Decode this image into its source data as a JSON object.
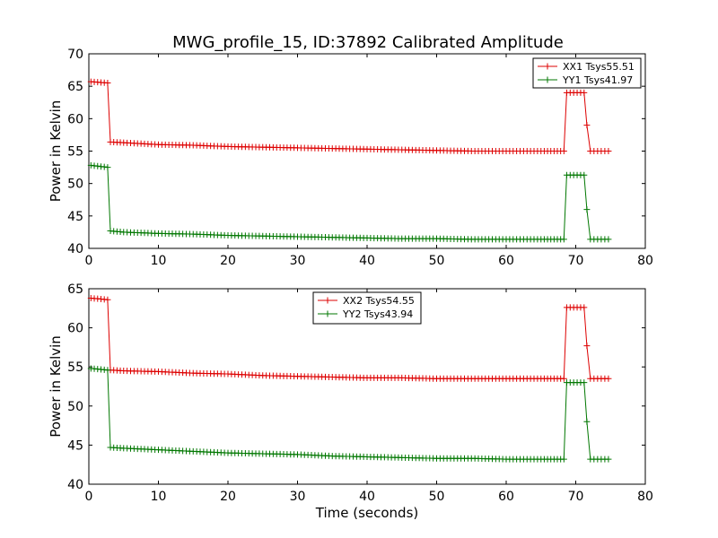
{
  "figure": {
    "title": "MWG_profile_15, ID:37892 Calibrated Amplitude"
  },
  "chart_data": [
    {
      "type": "line",
      "ylabel": "Power in Kelvin",
      "xlabel": "",
      "xlim": [
        0,
        80
      ],
      "ylim": [
        40,
        70
      ],
      "xticks": [
        0,
        10,
        20,
        30,
        40,
        50,
        60,
        70,
        80
      ],
      "yticks": [
        40,
        45,
        50,
        55,
        60,
        65,
        70
      ],
      "legend_position": "top-right",
      "grid": false,
      "series": [
        {
          "name": "XX1 Tsys55.51",
          "color": "#dd0000",
          "x": [
            0.3,
            2.7,
            3.1,
            5,
            10,
            15,
            20,
            25,
            30,
            35,
            40,
            45,
            50,
            55,
            60,
            65,
            68.3,
            68.7,
            71.2,
            71.6,
            72.1,
            74.7
          ],
          "y": [
            65.7,
            65.5,
            56.4,
            56.3,
            56.0,
            55.9,
            55.7,
            55.6,
            55.5,
            55.4,
            55.3,
            55.2,
            55.1,
            55.0,
            55.0,
            55.0,
            55.0,
            64.0,
            64.0,
            59.0,
            55.0,
            55.0
          ]
        },
        {
          "name": "YY1 Tsys41.97",
          "color": "#007700",
          "x": [
            0.3,
            2.7,
            3.1,
            5,
            10,
            15,
            20,
            25,
            30,
            35,
            40,
            45,
            50,
            55,
            60,
            65,
            68.3,
            68.7,
            71.2,
            71.6,
            72.1,
            74.7
          ],
          "y": [
            52.8,
            52.5,
            42.7,
            42.5,
            42.3,
            42.2,
            42.0,
            41.9,
            41.8,
            41.7,
            41.6,
            41.5,
            41.5,
            41.4,
            41.4,
            41.4,
            41.4,
            51.3,
            51.3,
            46.0,
            41.4,
            41.4
          ]
        }
      ]
    },
    {
      "type": "line",
      "ylabel": "Power in Kelvin",
      "xlabel": "Time (seconds)",
      "xlim": [
        0,
        80
      ],
      "ylim": [
        40,
        65
      ],
      "xticks": [
        0,
        10,
        20,
        30,
        40,
        50,
        60,
        70,
        80
      ],
      "yticks": [
        40,
        45,
        50,
        55,
        60,
        65
      ],
      "legend_position": "top-center",
      "grid": false,
      "series": [
        {
          "name": "XX2 Tsys54.55",
          "color": "#dd0000",
          "x": [
            0.3,
            2.7,
            3.1,
            5,
            10,
            15,
            20,
            25,
            30,
            35,
            40,
            45,
            50,
            55,
            60,
            65,
            68.3,
            68.7,
            71.2,
            71.6,
            72.1,
            74.7
          ],
          "y": [
            63.8,
            63.6,
            54.6,
            54.5,
            54.4,
            54.2,
            54.1,
            53.9,
            53.8,
            53.7,
            53.6,
            53.6,
            53.5,
            53.5,
            53.5,
            53.5,
            53.5,
            62.6,
            62.6,
            57.7,
            53.5,
            53.5
          ]
        },
        {
          "name": "YY2 Tsys43.94",
          "color": "#007700",
          "x": [
            0.3,
            2.7,
            3.1,
            5,
            10,
            15,
            20,
            25,
            30,
            35,
            40,
            45,
            50,
            55,
            60,
            65,
            68.3,
            68.7,
            71.2,
            71.6,
            72.1,
            74.7
          ],
          "y": [
            54.8,
            54.6,
            44.7,
            44.6,
            44.4,
            44.2,
            44.0,
            43.9,
            43.8,
            43.6,
            43.5,
            43.4,
            43.3,
            43.3,
            43.2,
            43.2,
            43.2,
            53.0,
            53.0,
            48.0,
            43.2,
            43.2
          ]
        }
      ]
    }
  ]
}
